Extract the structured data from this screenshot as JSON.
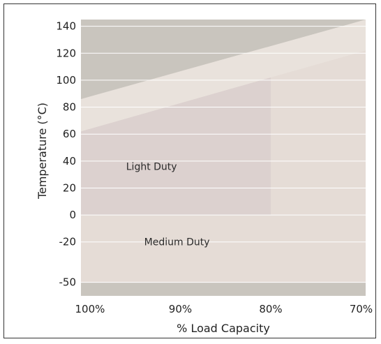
{
  "chart_data": {
    "type": "area",
    "title": "",
    "xlabel": "% Load Capacity",
    "ylabel": "Temperature (°C)",
    "x_ticks": [
      {
        "value": 100,
        "label": "100%"
      },
      {
        "value": 90,
        "label": "90%"
      },
      {
        "value": 80,
        "label": "80%"
      },
      {
        "value": 70,
        "label": "70%"
      }
    ],
    "y_ticks": [
      {
        "value": 140,
        "label": "140"
      },
      {
        "value": 120,
        "label": "120"
      },
      {
        "value": 100,
        "label": "100"
      },
      {
        "value": 80,
        "label": "80"
      },
      {
        "value": 60,
        "label": "60"
      },
      {
        "value": 40,
        "label": "40"
      },
      {
        "value": 20,
        "label": "20"
      },
      {
        "value": 0,
        "label": "0"
      },
      {
        "value": -20,
        "label": "-20"
      },
      {
        "value": -50,
        "label": "-50"
      }
    ],
    "xlim": [
      101,
      69.5
    ],
    "ylim": [
      -60,
      145
    ],
    "grid": true,
    "regions": [
      {
        "id": "medium",
        "label": "Medium Duty",
        "color": "#e5dcd6",
        "bounds": {
          "x_left": 101,
          "x_right": 69.5,
          "y_bottom": -50
        },
        "upper_edge": [
          [
            101,
            86
          ],
          [
            69.5,
            145
          ]
        ],
        "label_at": {
          "x": 94,
          "y": -20
        }
      },
      {
        "id": "light",
        "label": "Light Duty",
        "color": "#dcd1cf",
        "bounds": {
          "x_left": 101,
          "x_right": 80,
          "y_bottom": 0
        },
        "upper_edge": [
          [
            101,
            62
          ],
          [
            80,
            102
          ]
        ],
        "label_at": {
          "x": 96,
          "y": 36
        }
      }
    ],
    "background_color": "#c9c5be",
    "upper_band_color": "#e9e2dc",
    "grid_color": "#ffffff"
  }
}
